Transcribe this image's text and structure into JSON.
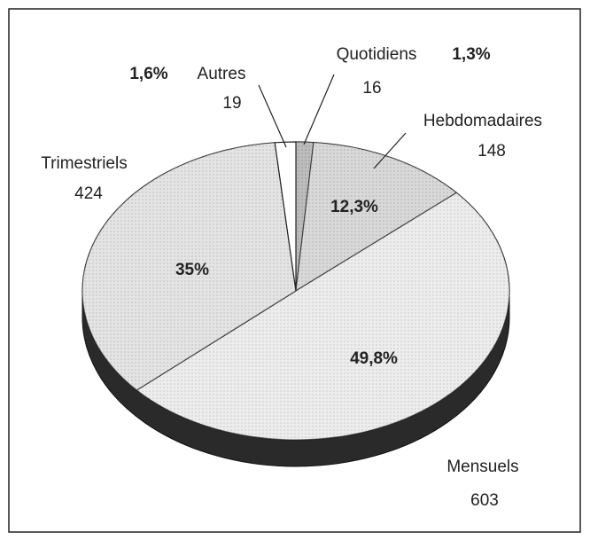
{
  "chart_data": {
    "type": "pie",
    "categories": [
      "Quotidiens",
      "Hebdomadaires",
      "Mensuels",
      "Trimestriels",
      "Autres"
    ],
    "values": [
      16,
      148,
      603,
      424,
      19
    ],
    "percentages": [
      1.3,
      12.3,
      49.8,
      35,
      1.6
    ],
    "percentage_labels": [
      "1,3%",
      "12,3%",
      "49,8%",
      "35%",
      "1,6%"
    ],
    "colors": [
      "#9a9a9a",
      "#c4c4c4",
      "#e4e4e4",
      "#d6d6d6",
      "#ffffff"
    ]
  }
}
